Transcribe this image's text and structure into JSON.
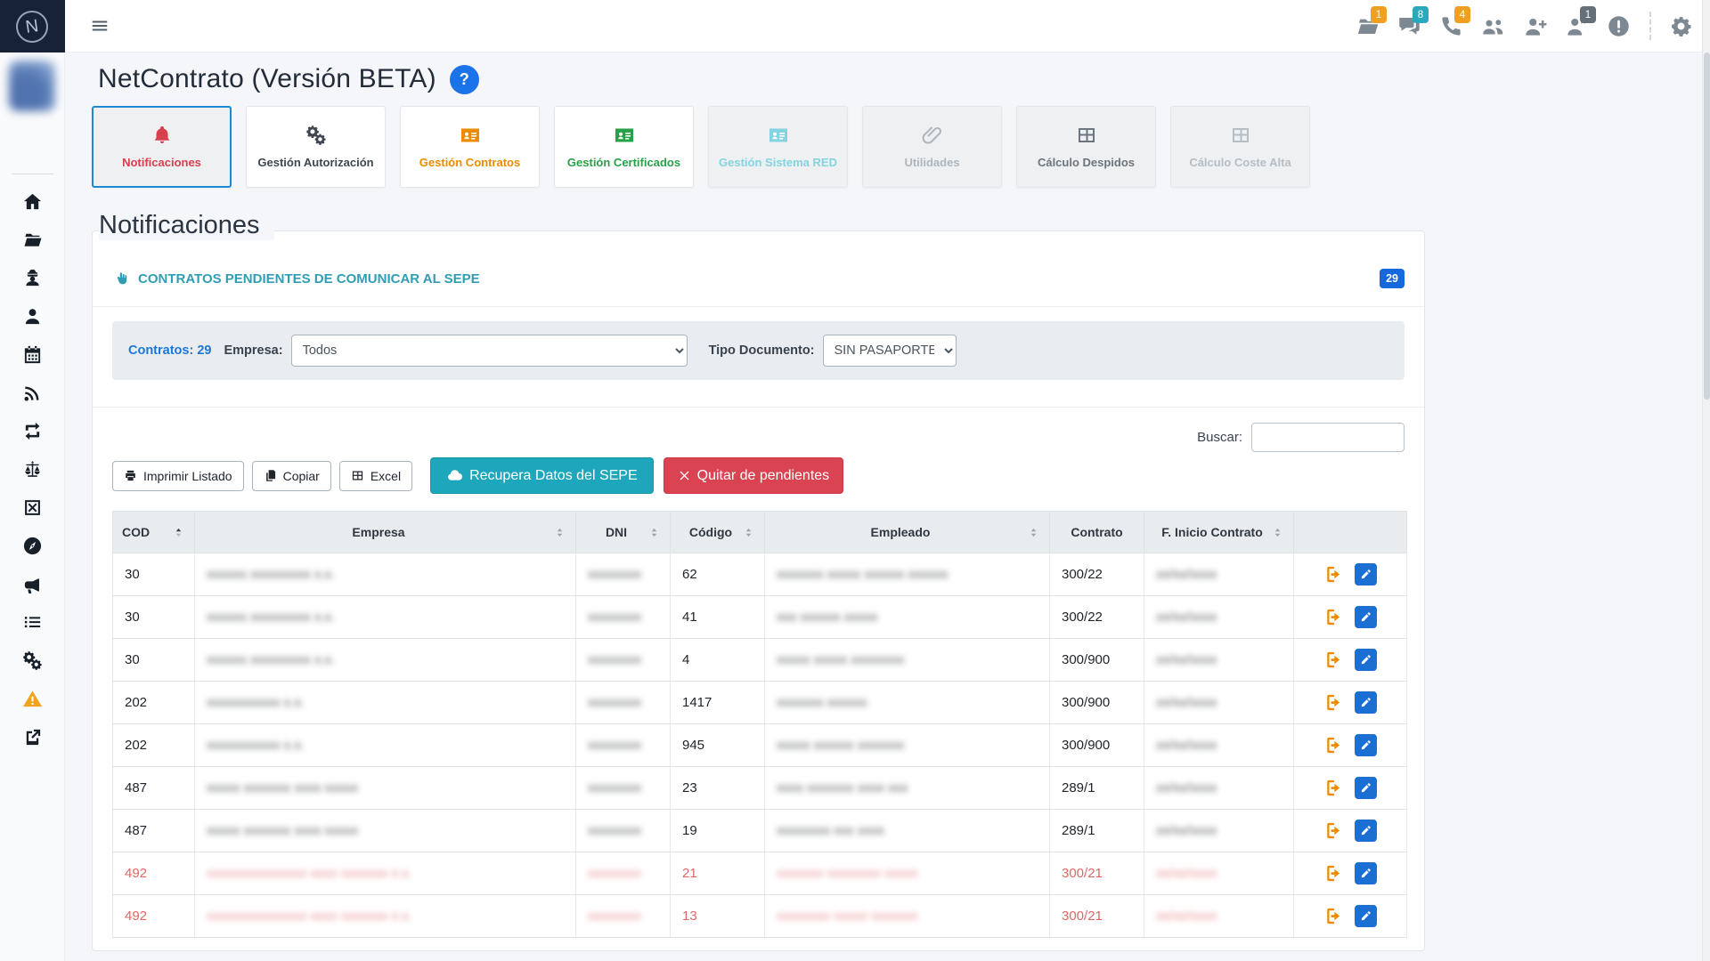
{
  "brand": {
    "letter": "N"
  },
  "topbar": {
    "icons": [
      {
        "name": "folder-open",
        "badge": "1",
        "badge_color": "#efa023"
      },
      {
        "name": "comments",
        "badge": "8",
        "badge_color": "#2aa9bd"
      },
      {
        "name": "phone",
        "badge": "4",
        "badge_color": "#efa023"
      },
      {
        "name": "users",
        "badge": ""
      },
      {
        "name": "user-plus",
        "badge": ""
      },
      {
        "name": "user-star",
        "badge": "1",
        "badge_color": "#646f78"
      },
      {
        "name": "alert-circle",
        "badge": ""
      }
    ]
  },
  "sidebar": {
    "items": [
      {
        "name": "home"
      },
      {
        "name": "folder-open"
      },
      {
        "name": "user-secret"
      },
      {
        "name": "user"
      },
      {
        "name": "calendar"
      },
      {
        "name": "rss"
      },
      {
        "name": "repeat"
      },
      {
        "name": "balance-scale"
      },
      {
        "name": "square-x"
      },
      {
        "name": "compass"
      },
      {
        "name": "bullhorn"
      },
      {
        "name": "list"
      },
      {
        "name": "gears"
      },
      {
        "name": "warning",
        "color": "#f0a31c"
      },
      {
        "name": "external-link"
      }
    ]
  },
  "page": {
    "title": "NetContrato (Versión BETA)",
    "help_label": "?"
  },
  "tabs": [
    {
      "label": "Notificaciones",
      "icon": "bell",
      "color": "#d8404f",
      "state": "active"
    },
    {
      "label": "Gestión Autorización",
      "icon": "cogs",
      "color": "#3f4750",
      "state": "normal"
    },
    {
      "label": "Gestión Contratos",
      "icon": "idcard",
      "color": "#ed8b00",
      "state": "normal"
    },
    {
      "label": "Gestión Certificados",
      "icon": "idcard",
      "color": "#28a149",
      "state": "normal"
    },
    {
      "label": "Gestión Sistema RED",
      "icon": "idcard",
      "color": "#84d3e0",
      "state": "muted"
    },
    {
      "label": "Utilidades",
      "icon": "paperclip",
      "color": "#aeb6bd",
      "state": "muted"
    },
    {
      "label": "Cálculo Despidos",
      "icon": "table",
      "color": "#6d757d",
      "state": "muted"
    },
    {
      "label": "Cálculo Coste Alta",
      "icon": "table",
      "color": "#b6bec5",
      "state": "muted"
    }
  ],
  "section": {
    "heading": "Notificaciones"
  },
  "panel": {
    "title": "CONTRATOS PENDIENTES DE COMUNICAR AL SEPE",
    "count_badge": "29"
  },
  "filters": {
    "contratos_label": "Contratos: 29",
    "empresa_label": "Empresa:",
    "empresa_value": "Todos",
    "tipo_label": "Tipo Documento:",
    "tipo_value": "SIN PASAPORTE"
  },
  "search": {
    "label": "Buscar:",
    "value": ""
  },
  "toolbar": {
    "print_label": "Imprimir Listado",
    "copy_label": "Copiar",
    "excel_label": "Excel",
    "recover_label": "Recupera Datos del SEPE",
    "remove_label": "Quitar de pendientes"
  },
  "table": {
    "columns": [
      {
        "label": "COD",
        "sort": "asc"
      },
      {
        "label": "Empresa",
        "sort": "both"
      },
      {
        "label": "DNI",
        "sort": "both"
      },
      {
        "label": "Código",
        "sort": "both"
      },
      {
        "label": "Empleado",
        "sort": "both"
      },
      {
        "label": "Contrato",
        "sort": "none"
      },
      {
        "label": "F. Inicio Contrato",
        "sort": "both"
      },
      {
        "label": "",
        "sort": "none"
      }
    ],
    "row_actions": [
      {
        "icon": "sign-out",
        "color": "#ed8b00"
      },
      {
        "icon": "edit",
        "color": "#1b6ed2"
      }
    ],
    "rows": [
      {
        "cod": "30",
        "empresa_redacted": "xxxxxx xxxxxxxxx x.x.",
        "dni_redacted": "xxxxxxxx",
        "codigo": "62",
        "empleado_redacted": "xxxxxxx xxxxx xxxxxx xxxxxx",
        "contrato": "300/22",
        "fecha_redacted": "xx/xx/xxxx",
        "alert": false
      },
      {
        "cod": "30",
        "empresa_redacted": "xxxxxx xxxxxxxxx x.x.",
        "dni_redacted": "xxxxxxxx",
        "codigo": "41",
        "empleado_redacted": "xxx xxxxxx xxxxx",
        "contrato": "300/22",
        "fecha_redacted": "xx/xx/xxxx",
        "alert": false
      },
      {
        "cod": "30",
        "empresa_redacted": "xxxxxx xxxxxxxxx x.x.",
        "dni_redacted": "xxxxxxxx",
        "codigo": "4",
        "empleado_redacted": "xxxxx xxxxx xxxxxxxx",
        "contrato": "300/900",
        "fecha_redacted": "xx/xx/xxxx",
        "alert": false
      },
      {
        "cod": "202",
        "empresa_redacted": "xxxxxxxxxxx x.x.",
        "dni_redacted": "xxxxxxxx",
        "codigo": "1417",
        "empleado_redacted": "xxxxxxx xxxxxx",
        "contrato": "300/900",
        "fecha_redacted": "xx/xx/xxxx",
        "alert": false
      },
      {
        "cod": "202",
        "empresa_redacted": "xxxxxxxxxxx x.x.",
        "dni_redacted": "xxxxxxxx",
        "codigo": "945",
        "empleado_redacted": "xxxxx xxxxxx xxxxxxx",
        "contrato": "300/900",
        "fecha_redacted": "xx/xx/xxxx",
        "alert": false
      },
      {
        "cod": "487",
        "empresa_redacted": "xxxxx xxxxxxx xxxx xxxxx",
        "dni_redacted": "xxxxxxxx",
        "codigo": "23",
        "empleado_redacted": "xxxx xxxxxxx xxxx xxx",
        "contrato": "289/1",
        "fecha_redacted": "xx/xx/xxxx",
        "alert": false
      },
      {
        "cod": "487",
        "empresa_redacted": "xxxxx xxxxxxx xxxx xxxxx",
        "dni_redacted": "xxxxxxxx",
        "codigo": "19",
        "empleado_redacted": "xxxxxxxx xxx xxxx",
        "contrato": "289/1",
        "fecha_redacted": "xx/xx/xxxx",
        "alert": false
      },
      {
        "cod": "492",
        "empresa_redacted": "xxxxxxxxxxxxxxx xxxx xxxxxxx x.x.",
        "dni_redacted": "xxxxxxxx",
        "codigo": "21",
        "empleado_redacted": "xxxxxxx xxxxxxxx xxxxx",
        "contrato": "300/21",
        "fecha_redacted": "xx/xx/xxxx",
        "alert": true
      },
      {
        "cod": "492",
        "empresa_redacted": "xxxxxxxxxxxxxxx xxxx xxxxxxx x.x.",
        "dni_redacted": "xxxxxxxx",
        "codigo": "13",
        "empleado_redacted": "xxxxxxxx xxxxx xxxxxxx",
        "contrato": "300/21",
        "fecha_redacted": "xx/xx/xxxx",
        "alert": true
      }
    ]
  }
}
